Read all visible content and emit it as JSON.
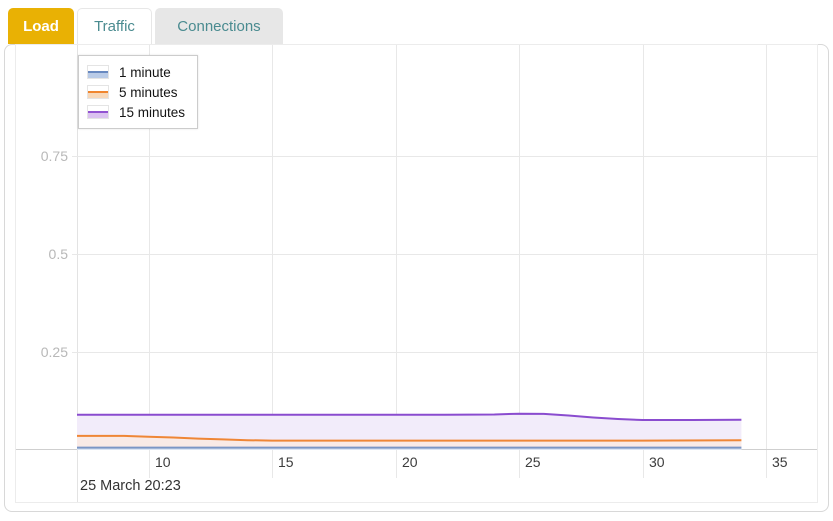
{
  "tabs": [
    {
      "label": "Load",
      "active": true
    },
    {
      "label": "Traffic",
      "active": false
    },
    {
      "label": "Connections",
      "active": false
    }
  ],
  "chart_data": {
    "type": "area",
    "title": "",
    "xlabel": "",
    "ylabel": "",
    "x_range": [
      7.1,
      37.1
    ],
    "y_range": [
      0,
      1.033
    ],
    "x_ticks": [
      10,
      15,
      20,
      25,
      30,
      35
    ],
    "y_ticks": [
      0.25,
      0.5,
      0.75
    ],
    "grid": true,
    "legend_position": "top-left",
    "x_axis_note": "25 March 20:23",
    "series": [
      {
        "name": "1 minute",
        "line_color": "#7b96c5",
        "fill_color": "#dce5f3",
        "legend_line_color": "#6889c0",
        "legend_fill_color": "#b9cbe7",
        "points": [
          [
            7.1,
            0.006
          ],
          [
            10,
            0.006
          ],
          [
            15,
            0.006
          ],
          [
            20,
            0.006
          ],
          [
            25,
            0.006
          ],
          [
            30,
            0.006
          ],
          [
            34,
            0.006
          ]
        ]
      },
      {
        "name": "5 minutes",
        "line_color": "#ef8636",
        "fill_color": "#f9eae6",
        "legend_line_color": "#f0862f",
        "legend_fill_color": "#f8d8b8",
        "points": [
          [
            7.1,
            0.036
          ],
          [
            9,
            0.036
          ],
          [
            10,
            0.034
          ],
          [
            11,
            0.032
          ],
          [
            12,
            0.029
          ],
          [
            13,
            0.027
          ],
          [
            14,
            0.025
          ],
          [
            15,
            0.024
          ],
          [
            18,
            0.024
          ],
          [
            22,
            0.024
          ],
          [
            26,
            0.024
          ],
          [
            30,
            0.024
          ],
          [
            34,
            0.025
          ]
        ]
      },
      {
        "name": "15 minutes",
        "line_color": "#8a4ccf",
        "fill_color": "#f2ecfa",
        "legend_line_color": "#9253d1",
        "legend_fill_color": "#dbc2f0",
        "points": [
          [
            7.1,
            0.09
          ],
          [
            10,
            0.09
          ],
          [
            14,
            0.09
          ],
          [
            18,
            0.09
          ],
          [
            22,
            0.09
          ],
          [
            24,
            0.0905
          ],
          [
            25,
            0.0925
          ],
          [
            26,
            0.092
          ],
          [
            27,
            0.088
          ],
          [
            28,
            0.083
          ],
          [
            29,
            0.079
          ],
          [
            30,
            0.0765
          ],
          [
            32,
            0.0765
          ],
          [
            34,
            0.077
          ]
        ]
      }
    ]
  }
}
